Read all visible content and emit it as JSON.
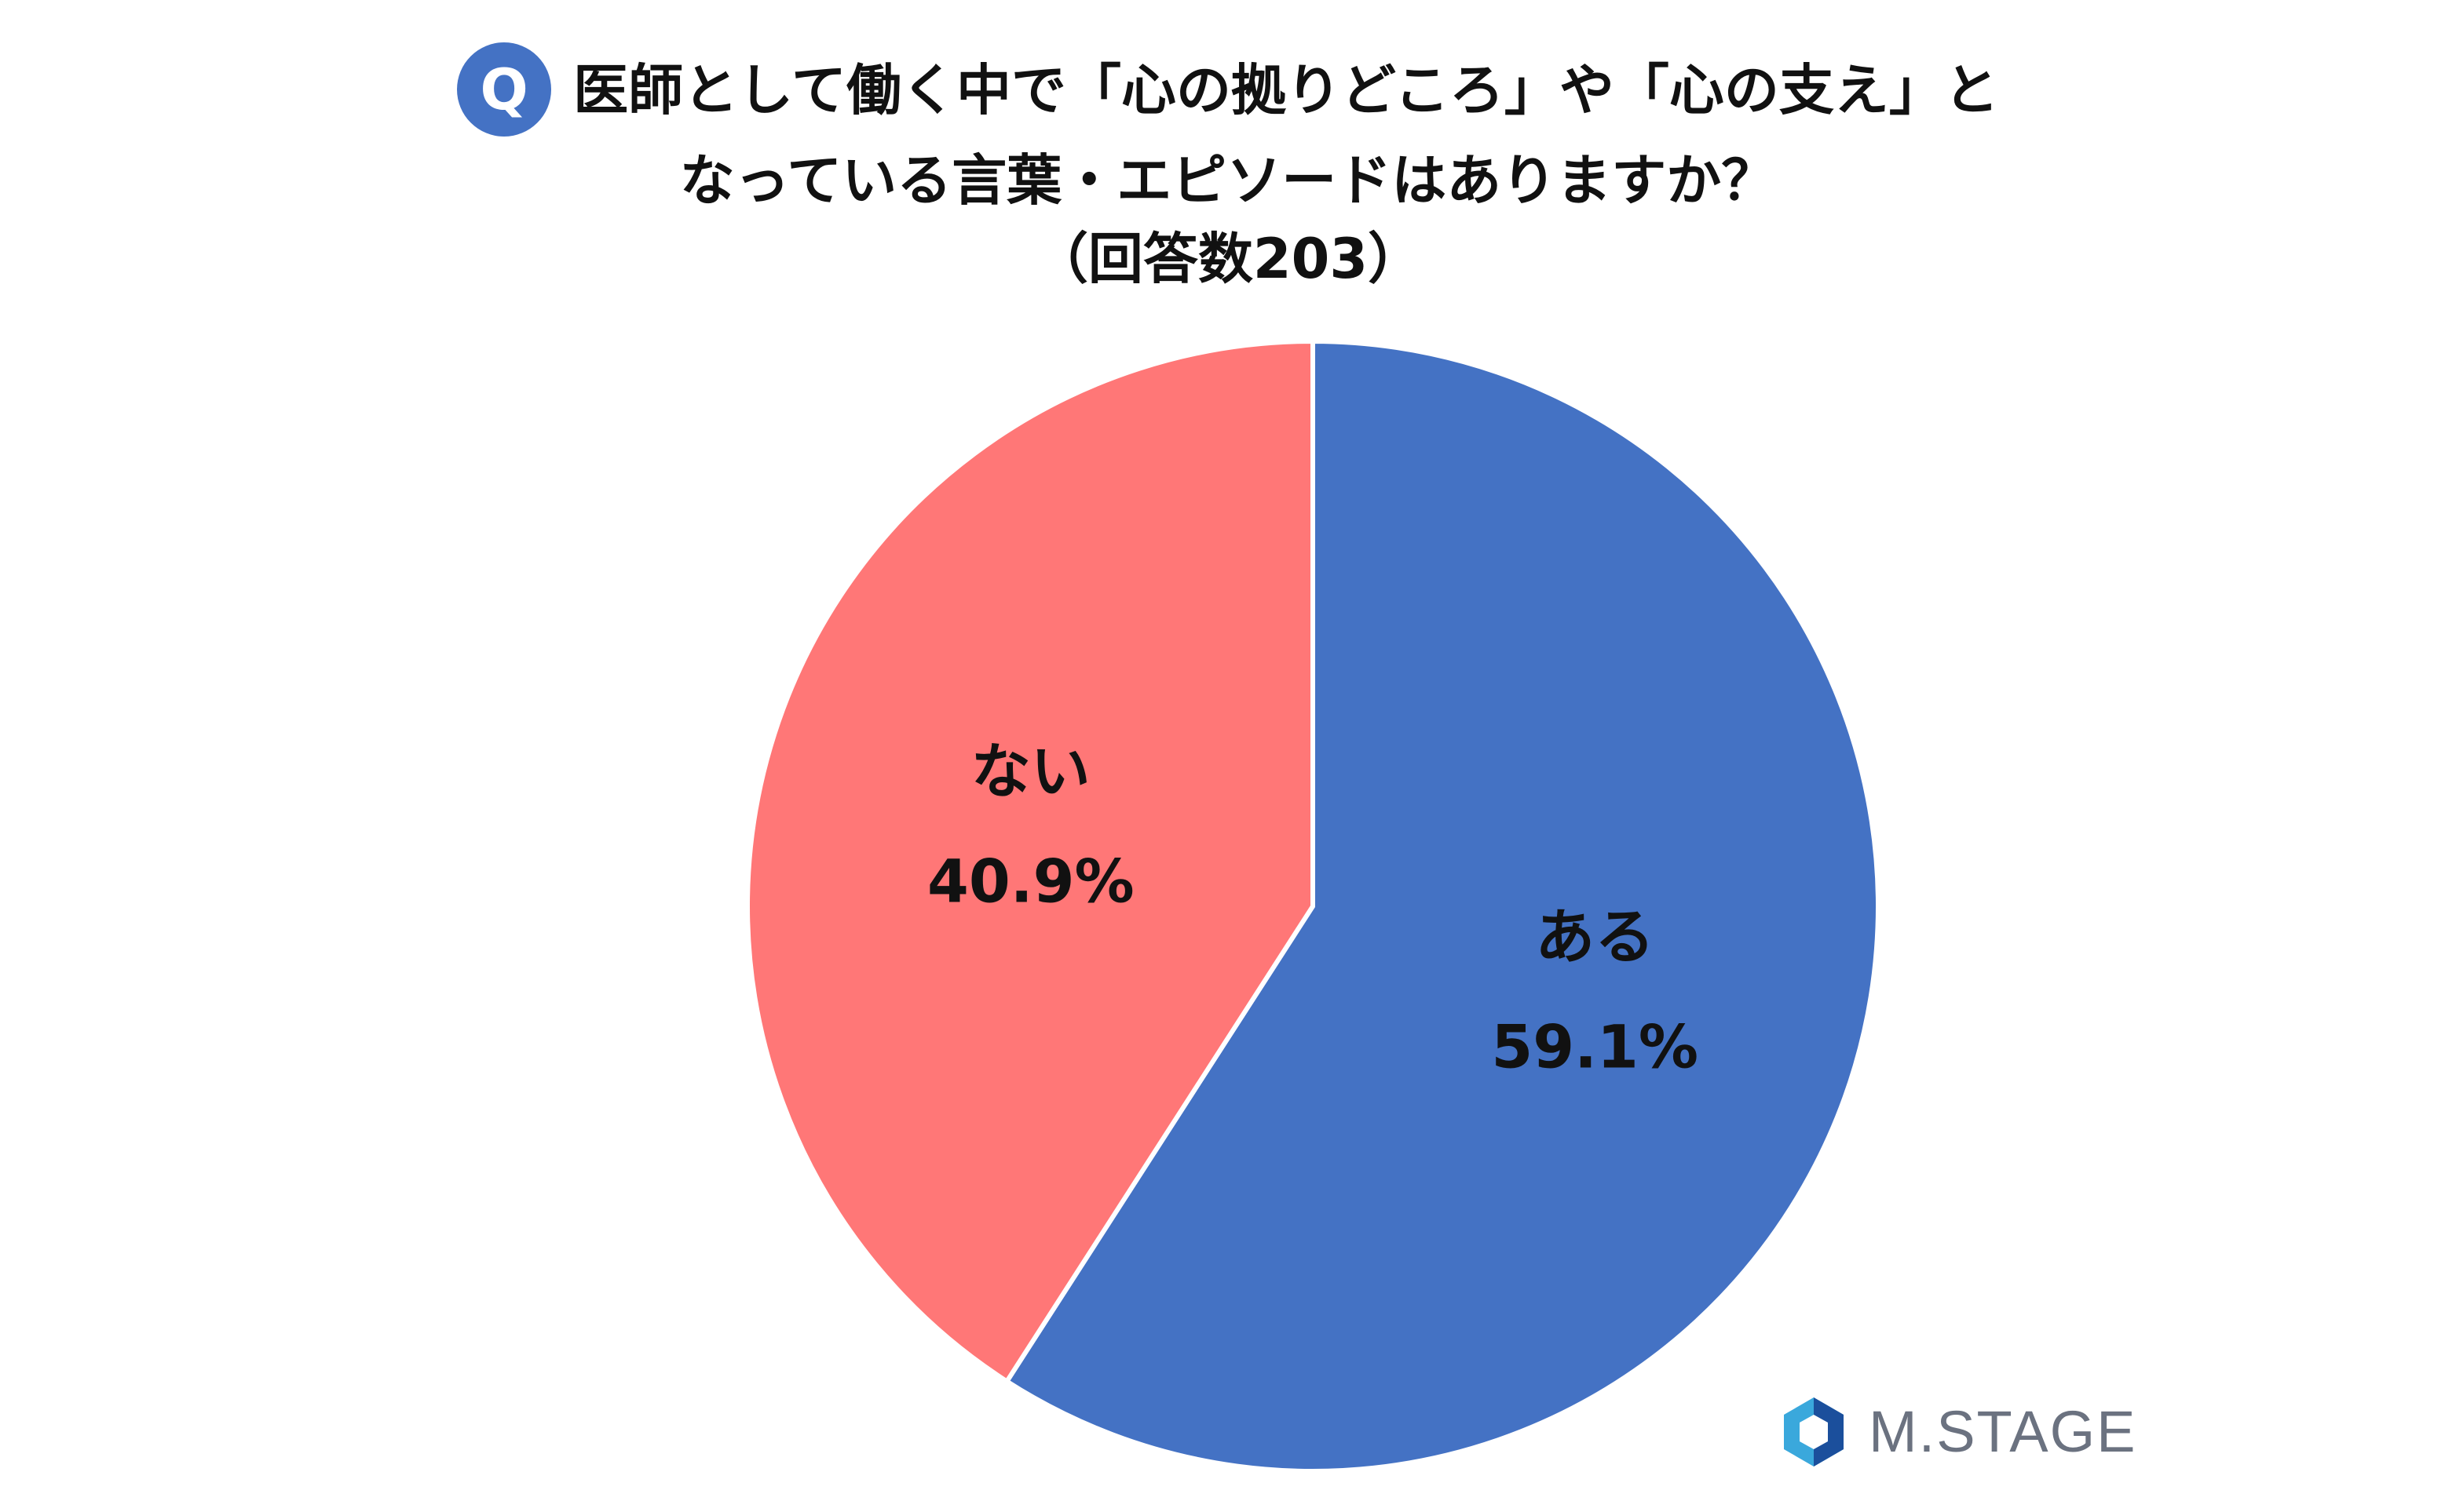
{
  "title": {
    "badge": "Q",
    "line1": "医師として働く中で「心の拠りどころ」や「心の支え」と",
    "line2": "なっている言葉・エピソードはありますか？",
    "line3": "（回答数203）"
  },
  "chart_data": {
    "type": "pie",
    "title": "医師として働く中で「心の拠りどころ」や「心の支え」となっている言葉・エピソードはありますか？（回答数203）",
    "slices": [
      {
        "label": "ある",
        "value": 59.1,
        "display": "59.1%",
        "color": "#4472C4"
      },
      {
        "label": "ない",
        "value": 40.9,
        "display": "40.9%",
        "color": "#FF7777"
      }
    ]
  },
  "logo": {
    "text": "M.STAGE",
    "colors": {
      "light": "#3AA8DC",
      "dark": "#1B4F9C"
    }
  }
}
